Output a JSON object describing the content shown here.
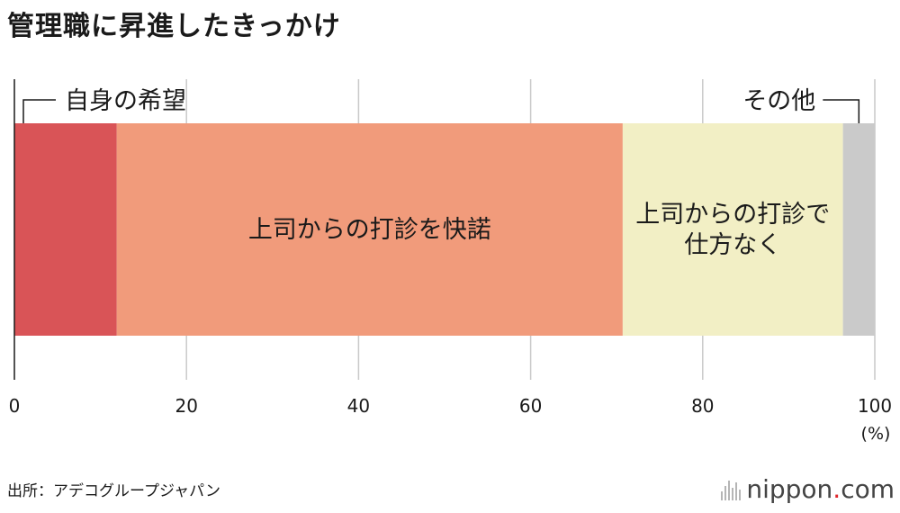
{
  "title": "管理職に昇進したきっかけ",
  "source": "出所：アデコグループジャパン",
  "logo": {
    "brand": "nippon",
    "dot": ".",
    "tld": "com"
  },
  "chart_data": {
    "type": "bar",
    "orientation": "horizontal",
    "stacked": true,
    "xlim": [
      0,
      100
    ],
    "xticks": [
      "0",
      "20",
      "40",
      "60",
      "80",
      "100"
    ],
    "xunit": "(%)",
    "grid": true,
    "series": [
      {
        "name": "自身の希望",
        "value": 11.9,
        "color": "#d95457",
        "label_position": "outside-left"
      },
      {
        "name": "上司からの打診を快諾",
        "value": 58.8,
        "color": "#f19b7b",
        "label_position": "inside"
      },
      {
        "name": "上司からの打診で仕方なく",
        "label_lines": [
          "上司からの打診で",
          "仕方なく"
        ],
        "value": 25.6,
        "color": "#f2efc5",
        "label_position": "inside"
      },
      {
        "name": "その他",
        "value": 3.7,
        "color": "#cacaca",
        "label_position": "outside-right"
      }
    ]
  }
}
